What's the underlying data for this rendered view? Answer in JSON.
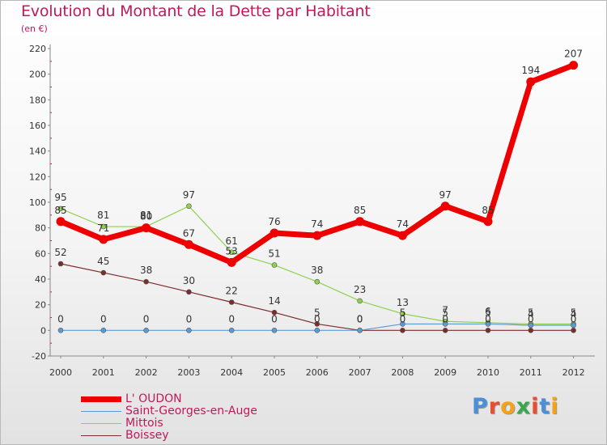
{
  "title": "Evolution du Montant de la Dette par Habitant",
  "subtitle": "(en €)",
  "logo": "Proxiti",
  "chart_data": {
    "type": "line",
    "x": [
      "2000",
      "2001",
      "2002",
      "2003",
      "2004",
      "2005",
      "2006",
      "2007",
      "2008",
      "2009",
      "2010",
      "2011",
      "2012"
    ],
    "ylim": [
      -20,
      220
    ],
    "yticks": [
      -20,
      0,
      20,
      40,
      60,
      80,
      100,
      120,
      140,
      160,
      180,
      200,
      220
    ],
    "grid": false,
    "legend_position": "bottom-left",
    "series": [
      {
        "name": "L' OUDON",
        "color": "#ee0000",
        "values": [
          85,
          71,
          80,
          67,
          53,
          76,
          74,
          85,
          74,
          97,
          85,
          194,
          207
        ]
      },
      {
        "name": "Saint-Georges-en-Auge",
        "color": "#5b9bd5",
        "values": [
          0,
          0,
          0,
          0,
          0,
          0,
          0,
          0,
          5,
          5,
          5,
          4,
          4
        ]
      },
      {
        "name": "Mittois",
        "color": "#8fd14f",
        "values": [
          95,
          81,
          81,
          97,
          61,
          51,
          38,
          23,
          13,
          7,
          6,
          5,
          5
        ]
      },
      {
        "name": "Boissey",
        "color": "#7b2c2c",
        "values": [
          52,
          45,
          38,
          30,
          22,
          14,
          5,
          0,
          0,
          0,
          0,
          0,
          0
        ]
      }
    ]
  }
}
